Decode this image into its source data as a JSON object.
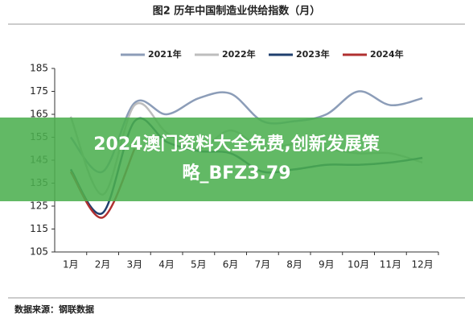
{
  "chart_data": {
    "type": "line",
    "title": "图2 历年中国制造业供给指数（月）",
    "categories": [
      "1月",
      "2月",
      "3月",
      "4月",
      "5月",
      "6月",
      "7月",
      "8月",
      "9月",
      "10月",
      "11月",
      "12月"
    ],
    "series": [
      {
        "name": "2021年",
        "color": "#8c9db8",
        "values": [
          155,
          140,
          170,
          165,
          172,
          174,
          162,
          162,
          165,
          175,
          169,
          172
        ]
      },
      {
        "name": "2022年",
        "color": "#bdbdbd",
        "values": [
          164,
          130,
          169,
          157,
          150,
          158,
          150,
          152,
          150,
          148,
          148,
          144
        ]
      },
      {
        "name": "2023年",
        "color": "#1f3f6e",
        "values": [
          141,
          122,
          162,
          153,
          149,
          148,
          140,
          141,
          143,
          143,
          144,
          146
        ]
      },
      {
        "name": "2024年",
        "color": "#b03030",
        "values": [
          140,
          120,
          150,
          null,
          null,
          null,
          null,
          null,
          null,
          null,
          null,
          null
        ]
      }
    ],
    "ylim": [
      105,
      185
    ],
    "yticks": [
      105,
      115,
      125,
      135,
      145,
      155,
      165,
      175,
      185
    ],
    "source": "数据来源：钢联数据",
    "banner": [
      "2024澳门资料大全免费,创新发展策",
      "略_BFZ3.79"
    ]
  }
}
